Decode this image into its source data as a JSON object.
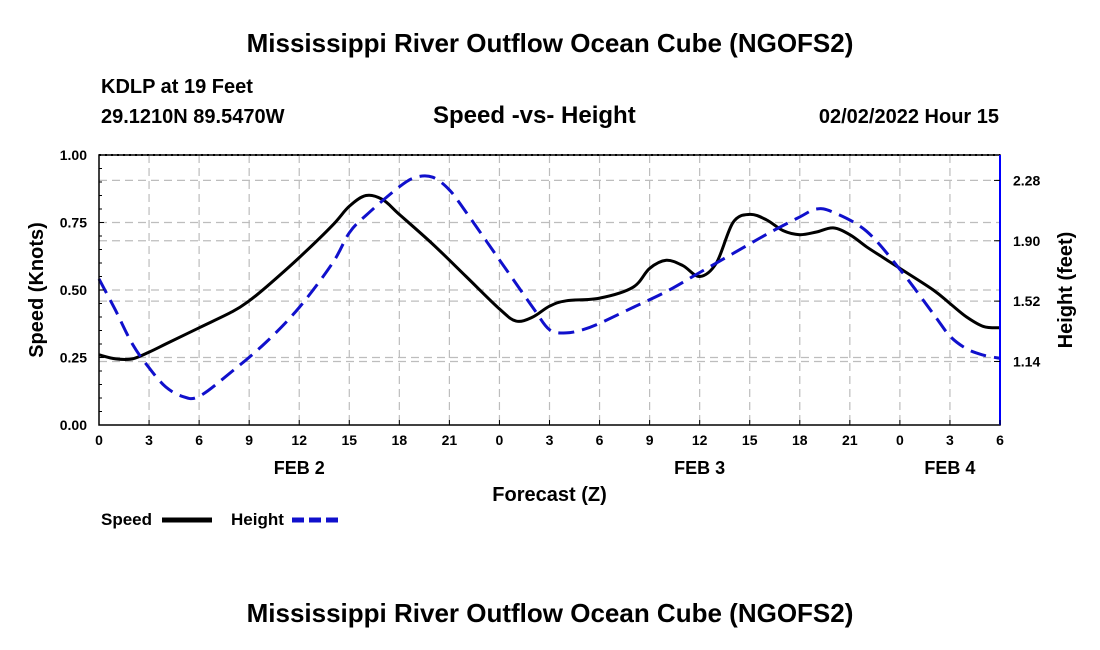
{
  "page_title": "Mississippi River Outflow Ocean Cube (NGOFS2)",
  "footer_title": "Mississippi River Outflow Ocean Cube (NGOFS2)",
  "station": "KDLP at 19 Feet",
  "coords": "29.1210N  89.5470W",
  "datetime": "02/02/2022 Hour 15",
  "colors": {
    "speed": "#000000",
    "height": "#1010cc",
    "grid": "#bdbdbd"
  },
  "chart_data": {
    "type": "line",
    "title": "Speed -vs- Height",
    "xlabel": "Forecast (Z)",
    "ylabel_left": "Speed (Knots)",
    "ylabel_right": "Height (feet)",
    "x_range_hours": [
      0,
      54
    ],
    "ylim_left": [
      0,
      1
    ],
    "ylim_right": [
      0.74,
      2.44
    ],
    "x_ticks": [
      {
        "h": 0,
        "label": "0"
      },
      {
        "h": 3,
        "label": "3"
      },
      {
        "h": 6,
        "label": "6"
      },
      {
        "h": 9,
        "label": "9"
      },
      {
        "h": 12,
        "label": "12"
      },
      {
        "h": 15,
        "label": "15"
      },
      {
        "h": 18,
        "label": "18"
      },
      {
        "h": 21,
        "label": "21"
      },
      {
        "h": 24,
        "label": "0"
      },
      {
        "h": 27,
        "label": "3"
      },
      {
        "h": 30,
        "label": "6"
      },
      {
        "h": 33,
        "label": "9"
      },
      {
        "h": 36,
        "label": "12"
      },
      {
        "h": 39,
        "label": "15"
      },
      {
        "h": 42,
        "label": "18"
      },
      {
        "h": 45,
        "label": "21"
      },
      {
        "h": 48,
        "label": "0"
      },
      {
        "h": 51,
        "label": "3"
      },
      {
        "h": 54,
        "label": "6"
      }
    ],
    "date_labels": [
      {
        "h": 12,
        "label": "FEB 2"
      },
      {
        "h": 36,
        "label": "FEB 3"
      },
      {
        "h": 51,
        "label": "FEB 4"
      }
    ],
    "y_ticks_left": [
      {
        "v": 0,
        "label": "0.00"
      },
      {
        "v": 0.25,
        "label": "0.25"
      },
      {
        "v": 0.5,
        "label": "0.50"
      },
      {
        "v": 0.75,
        "label": "0.75"
      },
      {
        "v": 1,
        "label": "1.00"
      }
    ],
    "y_ticks_right": [
      {
        "v": 1.14,
        "label": "1.14"
      },
      {
        "v": 1.52,
        "label": "1.52"
      },
      {
        "v": 1.9,
        "label": "1.90"
      },
      {
        "v": 2.28,
        "label": "2.28"
      }
    ],
    "legend": [
      {
        "name": "Speed",
        "series": "speed"
      },
      {
        "name": "Height",
        "series": "height"
      }
    ],
    "series": [
      {
        "name": "Speed",
        "key": "speed",
        "axis": "left",
        "style": "solid",
        "x": [
          0,
          1,
          2,
          3,
          4,
          6,
          8,
          9,
          10,
          12,
          14,
          15,
          16,
          17,
          18,
          20,
          22,
          24,
          25,
          26,
          27,
          28,
          30,
          32,
          33,
          34,
          35,
          36,
          37,
          38,
          39,
          40,
          41,
          42,
          43,
          44,
          45,
          46,
          47,
          48,
          50,
          51,
          52,
          53,
          54
        ],
        "values": [
          0.26,
          0.245,
          0.245,
          0.27,
          0.3,
          0.36,
          0.42,
          0.46,
          0.51,
          0.62,
          0.74,
          0.81,
          0.85,
          0.835,
          0.78,
          0.67,
          0.55,
          0.43,
          0.385,
          0.4,
          0.44,
          0.46,
          0.47,
          0.51,
          0.58,
          0.61,
          0.59,
          0.55,
          0.6,
          0.75,
          0.78,
          0.76,
          0.72,
          0.705,
          0.715,
          0.73,
          0.705,
          0.66,
          0.62,
          0.58,
          0.5,
          0.45,
          0.4,
          0.365,
          0.36
        ]
      },
      {
        "name": "Height",
        "key": "height",
        "axis": "right",
        "style": "dashed",
        "x": [
          0,
          1,
          2,
          3,
          4,
          5,
          6,
          8,
          10,
          12,
          14,
          15,
          16,
          18,
          19,
          20,
          21,
          22,
          24,
          26,
          27,
          28,
          29,
          30,
          32,
          34,
          36,
          38,
          40,
          42,
          43,
          44,
          46,
          48,
          50,
          51,
          52,
          53,
          54
        ],
        "values": [
          1.66,
          1.46,
          1.25,
          1.1,
          0.98,
          0.92,
          0.92,
          1.08,
          1.26,
          1.48,
          1.76,
          1.95,
          2.06,
          2.24,
          2.3,
          2.3,
          2.22,
          2.08,
          1.78,
          1.48,
          1.34,
          1.32,
          1.34,
          1.38,
          1.48,
          1.58,
          1.7,
          1.82,
          1.94,
          2.05,
          2.1,
          2.08,
          1.96,
          1.72,
          1.44,
          1.3,
          1.22,
          1.18,
          1.16
        ]
      }
    ]
  }
}
